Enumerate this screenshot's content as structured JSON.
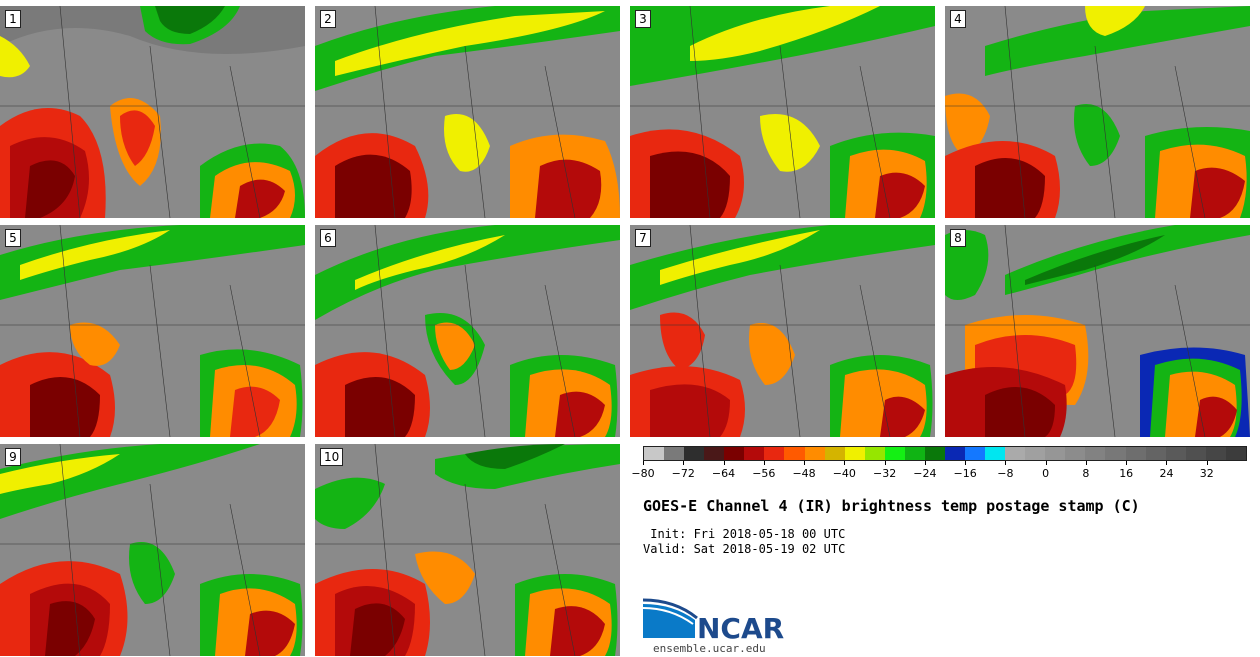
{
  "panels": [
    {
      "number": "1"
    },
    {
      "number": "2"
    },
    {
      "number": "3"
    },
    {
      "number": "4"
    },
    {
      "number": "5"
    },
    {
      "number": "6"
    },
    {
      "number": "7"
    },
    {
      "number": "8"
    },
    {
      "number": "9"
    },
    {
      "number": "10"
    }
  ],
  "colorbar": {
    "colors": [
      "#c8c8c8",
      "#7a7a7a",
      "#2e2e2e",
      "#4a1818",
      "#7a0000",
      "#b40a0a",
      "#e82810",
      "#ff5a00",
      "#ff8c00",
      "#d4b400",
      "#f0f000",
      "#96e600",
      "#14f014",
      "#10b414",
      "#0a780a",
      "#0a28b4",
      "#1478ff",
      "#00e6f0",
      "#aaaaaa",
      "#a0a0a0",
      "#969696",
      "#8c8c8c",
      "#828282",
      "#787878",
      "#6e6e6e",
      "#646464",
      "#5a5a5a",
      "#505050",
      "#464646",
      "#3c3c3c"
    ],
    "tick_labels": [
      "−80",
      "−72",
      "−64",
      "−56",
      "−48",
      "−40",
      "−32",
      "−24",
      "−16",
      "−8",
      "0",
      "8",
      "16",
      "24",
      "32"
    ]
  },
  "title": "GOES-E Channel 4 (IR) brightness temp postage stamp (C)",
  "init": " Init: Fri 2018-05-18 00 UTC",
  "valid": "Valid: Sat 2018-05-19 02 UTC",
  "logo_text": "NCAR",
  "url": "ensemble.ucar.edu"
}
